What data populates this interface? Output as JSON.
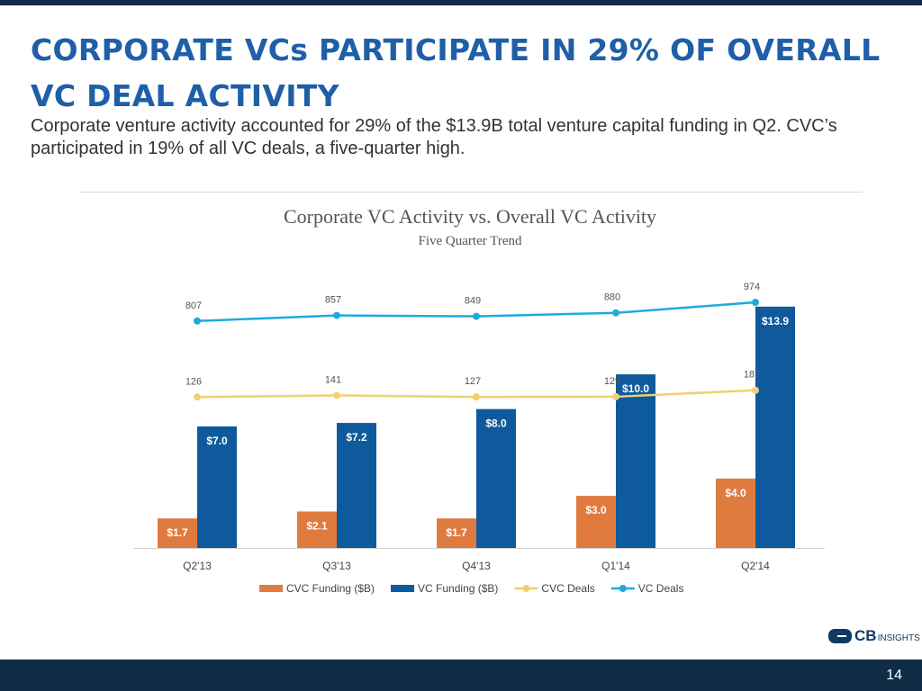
{
  "slide": {
    "title": "CORPORATE VCs PARTICIPATE IN 29% OF OVERALL VC DEAL ACTIVITY",
    "subtitle": "Corporate venture activity accounted for 29% of the $13.9B total venture capital funding in Q2. CVC’s participated in 19% of all VC deals, a five-quarter high.",
    "logo_cb": "CB",
    "logo_insights": "INSIGHTS",
    "page_number": "14"
  },
  "chart_data": {
    "type": "bar",
    "title": "Corporate VC Activity vs. Overall VC Activity",
    "subtitle": "Five Quarter Trend",
    "categories": [
      "Q2'13",
      "Q3'13",
      "Q4'13",
      "Q1'14",
      "Q2'14"
    ],
    "series": [
      {
        "name": "CVC Funding ($B)",
        "kind": "bar",
        "axis": "funding",
        "color": "#e07b3f",
        "values": [
          1.7,
          2.1,
          1.7,
          3.0,
          4.0
        ],
        "labels": [
          "$1.7",
          "$2.1",
          "$1.7",
          "$3.0",
          "$4.0"
        ]
      },
      {
        "name": "VC Funding ($B)",
        "kind": "bar",
        "axis": "funding",
        "color": "#0e5a9c",
        "values": [
          7.0,
          7.2,
          8.0,
          10.0,
          13.9
        ],
        "labels": [
          "$7.0",
          "$7.2",
          "$8.0",
          "$10.0",
          "$13.9"
        ]
      },
      {
        "name": "CVC Deals",
        "kind": "line",
        "axis": "deals",
        "color": "#f2cf73",
        "values": [
          126,
          141,
          127,
          129,
          187
        ],
        "labels": [
          "126",
          "141",
          "127",
          "129",
          "187"
        ]
      },
      {
        "name": "VC Deals",
        "kind": "line",
        "axis": "deals",
        "color": "#1fa9e1",
        "values": [
          807,
          857,
          849,
          880,
          974
        ],
        "labels": [
          "807",
          "857",
          "849",
          "880",
          "974"
        ]
      }
    ],
    "funding_axis_range": [
      0,
      15.6
    ],
    "deals_axis_range": [
      -1225,
      1200
    ],
    "legend": "bottom",
    "grid": false
  }
}
